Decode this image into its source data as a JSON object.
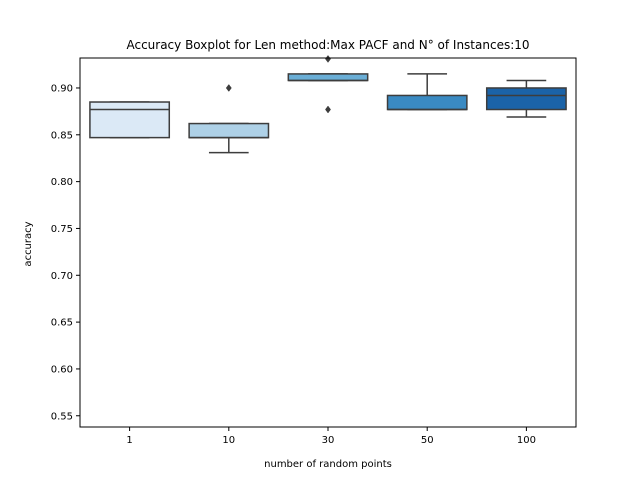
{
  "chart_data": {
    "type": "boxplot",
    "title": "Accuracy Boxplot for Len method:Max PACF and N° of Instances:10",
    "xlabel": "number of random points",
    "ylabel": "accuracy",
    "ylim": [
      0.538,
      0.932
    ],
    "yticks": [
      "0.55",
      "0.60",
      "0.65",
      "0.70",
      "0.75",
      "0.80",
      "0.85",
      "0.90"
    ],
    "categories": [
      "1",
      "10",
      "30",
      "50",
      "100"
    ],
    "colors": [
      "#dbe9f6",
      "#aed1e7",
      "#6aaed6",
      "#3a8ac2",
      "#1b63a8"
    ],
    "edge_color": "#3d3d3d",
    "grid": false,
    "boxes": [
      {
        "category": "1",
        "whislo": 0.847,
        "q1": 0.847,
        "median": 0.877,
        "q3": 0.885,
        "whishi": 0.885,
        "fliers": []
      },
      {
        "category": "10",
        "whislo": 0.831,
        "q1": 0.847,
        "median": 0.847,
        "q3": 0.862,
        "whishi": 0.862,
        "fliers": [
          0.9
        ]
      },
      {
        "category": "30",
        "whislo": 0.908,
        "q1": 0.908,
        "median": 0.908,
        "q3": 0.915,
        "whishi": 0.915,
        "fliers": [
          0.877,
          0.931
        ]
      },
      {
        "category": "50",
        "whislo": 0.877,
        "q1": 0.877,
        "median": 0.877,
        "q3": 0.892,
        "whishi": 0.915,
        "fliers": []
      },
      {
        "category": "100",
        "whislo": 0.869,
        "q1": 0.877,
        "median": 0.892,
        "q3": 0.9,
        "whishi": 0.908,
        "fliers": []
      }
    ]
  }
}
